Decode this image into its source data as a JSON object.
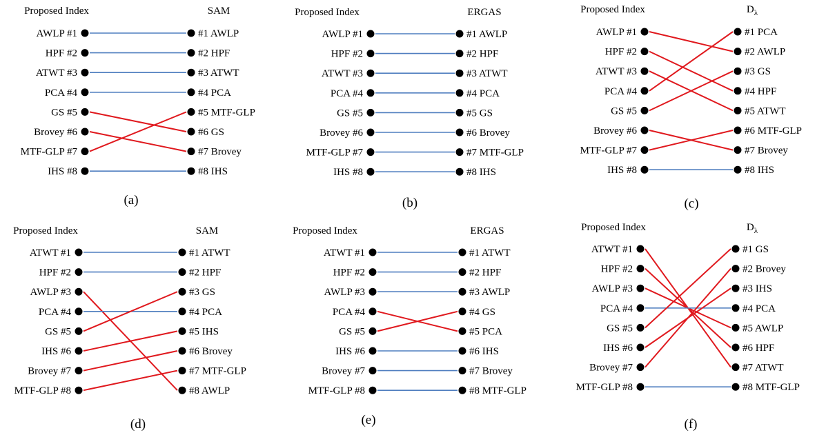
{
  "link_colors": {
    "same": "#4F7EBF",
    "changed": "#E0191E",
    "dot": "#000000"
  },
  "panels": [
    {
      "caption": "(a)",
      "left_title": "Proposed Index",
      "right_title": "SAM",
      "right_title_subscript": "",
      "left": [
        "AWLP #1",
        "HPF #2",
        "ATWT #3",
        "PCA #4",
        "GS #5",
        "Brovey #6",
        "MTF-GLP #7",
        "IHS #8"
      ],
      "right": [
        "#1 AWLP",
        "#2 HPF",
        "#3 ATWT",
        "#4 PCA",
        "#5 MTF-GLP",
        "#6 GS",
        "#7 Brovey",
        "#8 IHS"
      ],
      "links": [
        [
          1,
          1
        ],
        [
          2,
          2
        ],
        [
          3,
          3
        ],
        [
          4,
          4
        ],
        [
          5,
          6
        ],
        [
          6,
          7
        ],
        [
          7,
          5
        ],
        [
          8,
          8
        ]
      ]
    },
    {
      "caption": "(b)",
      "left_title": "Proposed Index",
      "right_title": "ERGAS",
      "right_title_subscript": "",
      "left": [
        "AWLP #1",
        "HPF #2",
        "ATWT #3",
        "PCA #4",
        "GS #5",
        "Brovey #6",
        "MTF-GLP #7",
        "IHS #8"
      ],
      "right": [
        "#1 AWLP",
        "#2 HPF",
        "#3 ATWT",
        "#4 PCA",
        "#5 GS",
        "#6 Brovey",
        "#7 MTF-GLP",
        "#8 IHS"
      ],
      "links": [
        [
          1,
          1
        ],
        [
          2,
          2
        ],
        [
          3,
          3
        ],
        [
          4,
          4
        ],
        [
          5,
          5
        ],
        [
          6,
          6
        ],
        [
          7,
          7
        ],
        [
          8,
          8
        ]
      ]
    },
    {
      "caption": "(c)",
      "left_title": "Proposed Index",
      "right_title": "D",
      "right_title_subscript": "λ",
      "left": [
        "AWLP #1",
        "HPF #2",
        "ATWT #3",
        "PCA #4",
        "GS #5",
        "Brovey #6",
        "MTF-GLP #7",
        "IHS #8"
      ],
      "right": [
        "#1 PCA",
        "#2 AWLP",
        "#3 GS",
        "#4 HPF",
        "#5 ATWT",
        "#6 MTF-GLP",
        "#7 Brovey",
        "#8 IHS"
      ],
      "links": [
        [
          1,
          2
        ],
        [
          2,
          4
        ],
        [
          3,
          5
        ],
        [
          4,
          1
        ],
        [
          5,
          3
        ],
        [
          6,
          7
        ],
        [
          7,
          6
        ],
        [
          8,
          8
        ]
      ]
    },
    {
      "caption": "(d)",
      "left_title": "Proposed Index",
      "right_title": "SAM",
      "right_title_subscript": "",
      "left": [
        "ATWT #1",
        "HPF #2",
        "AWLP #3",
        "PCA #4",
        "GS #5",
        "IHS #6",
        "Brovey #7",
        "MTF-GLP #8"
      ],
      "right": [
        "#1 ATWT",
        "#2 HPF",
        "#3 GS",
        "#4 PCA",
        "#5 IHS",
        "#6 Brovey",
        "#7 MTF-GLP",
        "#8 AWLP"
      ],
      "links": [
        [
          1,
          1
        ],
        [
          2,
          2
        ],
        [
          3,
          8
        ],
        [
          4,
          4
        ],
        [
          5,
          3
        ],
        [
          6,
          5
        ],
        [
          7,
          6
        ],
        [
          8,
          7
        ]
      ]
    },
    {
      "caption": "(e)",
      "left_title": "Proposed Index",
      "right_title": "ERGAS",
      "right_title_subscript": "",
      "left": [
        "ATWT #1",
        "HPF #2",
        "AWLP #3",
        "PCA #4",
        "GS #5",
        "IHS #6",
        "Brovey #7",
        "MTF-GLP #8"
      ],
      "right": [
        "#1 ATWT",
        "#2 HPF",
        "#3 AWLP",
        "#4 GS",
        "#5 PCA",
        "#6 IHS",
        "#7 Brovey",
        "#8 MTF-GLP"
      ],
      "links": [
        [
          1,
          1
        ],
        [
          2,
          2
        ],
        [
          3,
          3
        ],
        [
          4,
          5
        ],
        [
          5,
          4
        ],
        [
          6,
          6
        ],
        [
          7,
          7
        ],
        [
          8,
          8
        ]
      ]
    },
    {
      "caption": "(f)",
      "left_title": "Proposed Index",
      "right_title": "D",
      "right_title_subscript": "λ",
      "left": [
        "ATWT #1",
        "HPF #2",
        "AWLP #3",
        "PCA #4",
        "GS #5",
        "IHS #6",
        "Brovey #7",
        "MTF-GLP #8"
      ],
      "right": [
        "#1 GS",
        "#2 Brovey",
        "#3 IHS",
        "#4 PCA",
        "#5 AWLP",
        "#6 HPF",
        "#7 ATWT",
        "#8 MTF-GLP"
      ],
      "links": [
        [
          1,
          7
        ],
        [
          2,
          6
        ],
        [
          3,
          5
        ],
        [
          4,
          4
        ],
        [
          5,
          1
        ],
        [
          6,
          3
        ],
        [
          7,
          2
        ],
        [
          8,
          8
        ]
      ]
    }
  ]
}
